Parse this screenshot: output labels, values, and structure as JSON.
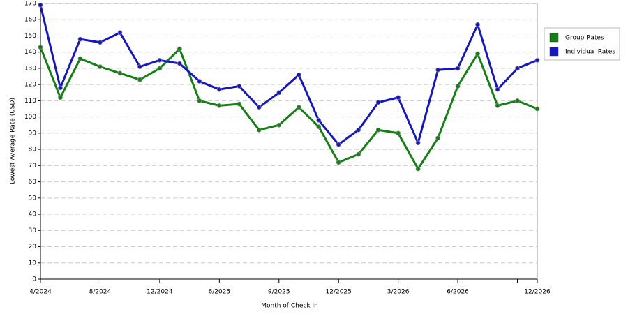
{
  "chart_data": {
    "type": "line",
    "x_label": "Month of Check In",
    "y_label": "Lowest Average Rate (USD)",
    "categories": [
      "4/2024",
      null,
      null,
      "8/2024",
      null,
      null,
      "12/2024",
      null,
      null,
      "6/2025",
      null,
      null,
      "9/2025",
      null,
      null,
      "12/2025",
      null,
      null,
      "3/2026",
      null,
      null,
      "6/2026",
      null,
      null,
      null,
      "12/2026"
    ],
    "series": [
      {
        "name": "Group Rates",
        "color": "#138013",
        "values": [
          143,
          112,
          136,
          131,
          127,
          123,
          130,
          142,
          110,
          107,
          108,
          92,
          95,
          106,
          94,
          72,
          77,
          92,
          90,
          68,
          87,
          119,
          139,
          107,
          110,
          105
        ]
      },
      {
        "name": "Individual Rates",
        "color": "#1515c8",
        "values": [
          169,
          118,
          148,
          146,
          152,
          131,
          135,
          133,
          122,
          117,
          119,
          106,
          115,
          126,
          98,
          83,
          92,
          109,
          112,
          84,
          129,
          130,
          157,
          117,
          130,
          135
        ]
      }
    ],
    "ylim": [
      0,
      170
    ],
    "yticks": [
      0,
      10,
      20,
      30,
      40,
      50,
      60,
      70,
      80,
      90,
      100,
      110,
      120,
      130,
      140,
      150,
      160,
      170
    ],
    "grid": true,
    "legend": "right"
  }
}
